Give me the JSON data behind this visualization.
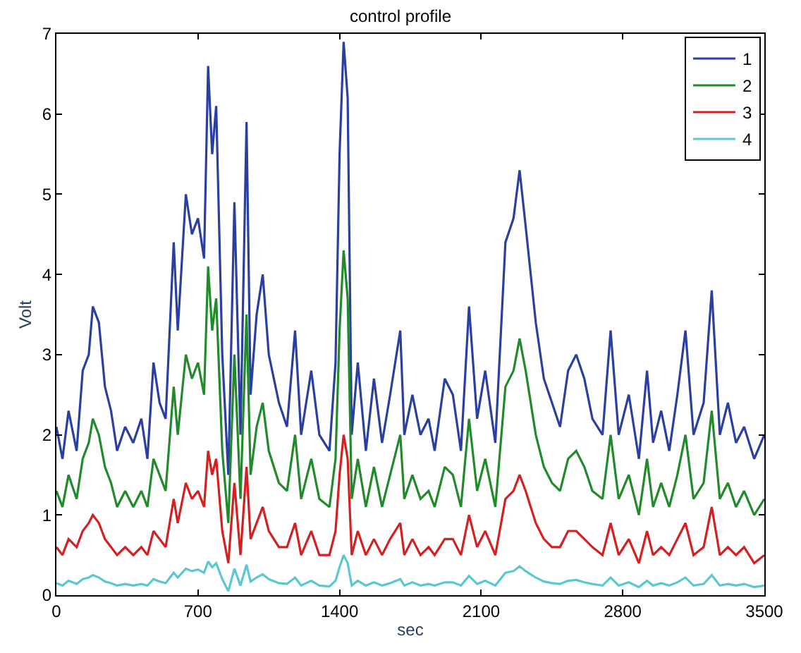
{
  "chart_data": {
    "type": "line",
    "title": "control profile",
    "xlabel": "sec",
    "ylabel": "Volt",
    "x": [
      0,
      30,
      60,
      100,
      130,
      160,
      180,
      210,
      240,
      270,
      300,
      340,
      380,
      420,
      450,
      480,
      510,
      540,
      580,
      600,
      640,
      670,
      700,
      730,
      750,
      770,
      790,
      820,
      850,
      880,
      910,
      940,
      960,
      990,
      1020,
      1050,
      1100,
      1140,
      1180,
      1210,
      1260,
      1300,
      1350,
      1380,
      1400,
      1420,
      1440,
      1460,
      1490,
      1530,
      1570,
      1610,
      1650,
      1700,
      1720,
      1760,
      1800,
      1840,
      1870,
      1920,
      1960,
      2000,
      2040,
      2080,
      2120,
      2170,
      2220,
      2260,
      2290,
      2320,
      2370,
      2410,
      2450,
      2490,
      2530,
      2570,
      2610,
      2650,
      2700,
      2740,
      2780,
      2830,
      2880,
      2920,
      2950,
      2990,
      3030,
      3070,
      3110,
      3150,
      3200,
      3240,
      3280,
      3320,
      3360,
      3400,
      3450,
      3500
    ],
    "series": [
      {
        "name": "1",
        "color": "#2b3fa0",
        "values": [
          2.1,
          1.7,
          2.3,
          1.8,
          2.8,
          3.0,
          3.6,
          3.4,
          2.6,
          2.3,
          1.8,
          2.1,
          1.9,
          2.2,
          1.7,
          2.9,
          2.4,
          2.2,
          4.4,
          3.3,
          5.0,
          4.5,
          4.7,
          4.2,
          6.6,
          5.5,
          6.1,
          3.0,
          1.5,
          4.9,
          2.0,
          5.9,
          2.5,
          3.5,
          4.0,
          3.0,
          2.4,
          2.1,
          3.3,
          2.0,
          2.8,
          2.0,
          1.8,
          2.9,
          5.5,
          6.9,
          6.2,
          2.0,
          2.9,
          1.8,
          2.7,
          1.9,
          2.5,
          3.3,
          2.0,
          2.5,
          2.0,
          2.2,
          1.8,
          2.7,
          2.5,
          1.8,
          3.6,
          2.2,
          2.8,
          1.9,
          4.4,
          4.7,
          5.3,
          4.6,
          3.4,
          2.7,
          2.4,
          2.1,
          2.8,
          3.0,
          2.7,
          2.2,
          2.0,
          3.3,
          2.0,
          2.5,
          1.7,
          2.8,
          1.9,
          2.3,
          1.8,
          2.5,
          3.3,
          2.0,
          2.4,
          3.8,
          2.0,
          2.4,
          1.9,
          2.1,
          1.7,
          2.0
        ]
      },
      {
        "name": "2",
        "color": "#218a2a",
        "values": [
          1.3,
          1.1,
          1.5,
          1.2,
          1.7,
          1.9,
          2.2,
          2.0,
          1.6,
          1.4,
          1.1,
          1.3,
          1.1,
          1.3,
          1.1,
          1.7,
          1.5,
          1.3,
          2.6,
          2.0,
          3.0,
          2.7,
          2.9,
          2.5,
          4.1,
          3.3,
          3.7,
          1.8,
          0.9,
          3.0,
          1.2,
          3.5,
          1.5,
          2.1,
          2.4,
          1.8,
          1.4,
          1.3,
          2.0,
          1.2,
          1.7,
          1.2,
          1.1,
          1.7,
          3.3,
          4.3,
          3.7,
          1.2,
          1.7,
          1.1,
          1.6,
          1.1,
          1.5,
          2.0,
          1.2,
          1.5,
          1.2,
          1.3,
          1.1,
          1.6,
          1.5,
          1.1,
          2.2,
          1.3,
          1.7,
          1.1,
          2.6,
          2.8,
          3.2,
          2.8,
          2.0,
          1.6,
          1.4,
          1.3,
          1.7,
          1.8,
          1.6,
          1.3,
          1.2,
          2.0,
          1.2,
          1.5,
          1.0,
          1.7,
          1.1,
          1.4,
          1.1,
          1.5,
          2.0,
          1.2,
          1.4,
          2.3,
          1.2,
          1.4,
          1.1,
          1.3,
          1.0,
          1.2
        ]
      },
      {
        "name": "3",
        "color": "#d42020",
        "values": [
          0.6,
          0.5,
          0.7,
          0.6,
          0.8,
          0.9,
          1.0,
          0.9,
          0.7,
          0.6,
          0.5,
          0.6,
          0.5,
          0.6,
          0.5,
          0.8,
          0.7,
          0.6,
          1.2,
          0.9,
          1.4,
          1.2,
          1.3,
          1.1,
          1.8,
          1.5,
          1.7,
          0.8,
          0.4,
          1.4,
          0.5,
          1.6,
          0.7,
          0.9,
          1.1,
          0.8,
          0.6,
          0.6,
          0.9,
          0.5,
          0.8,
          0.5,
          0.5,
          0.8,
          1.5,
          2.0,
          1.7,
          0.5,
          0.8,
          0.5,
          0.7,
          0.5,
          0.7,
          0.9,
          0.5,
          0.7,
          0.5,
          0.6,
          0.5,
          0.7,
          0.7,
          0.5,
          1.0,
          0.6,
          0.8,
          0.5,
          1.2,
          1.3,
          1.5,
          1.3,
          0.9,
          0.7,
          0.6,
          0.6,
          0.8,
          0.8,
          0.7,
          0.6,
          0.5,
          0.9,
          0.5,
          0.7,
          0.4,
          0.8,
          0.5,
          0.6,
          0.5,
          0.7,
          0.9,
          0.5,
          0.6,
          1.1,
          0.5,
          0.6,
          0.5,
          0.6,
          0.4,
          0.5
        ]
      },
      {
        "name": "4",
        "color": "#5bc8d0",
        "values": [
          0.15,
          0.12,
          0.18,
          0.14,
          0.2,
          0.22,
          0.25,
          0.22,
          0.17,
          0.15,
          0.12,
          0.14,
          0.12,
          0.14,
          0.12,
          0.2,
          0.17,
          0.15,
          0.28,
          0.22,
          0.33,
          0.3,
          0.32,
          0.28,
          0.42,
          0.35,
          0.4,
          0.2,
          0.05,
          0.33,
          0.12,
          0.38,
          0.17,
          0.22,
          0.26,
          0.2,
          0.15,
          0.14,
          0.22,
          0.12,
          0.18,
          0.12,
          0.11,
          0.18,
          0.35,
          0.5,
          0.4,
          0.12,
          0.18,
          0.12,
          0.16,
          0.12,
          0.15,
          0.2,
          0.12,
          0.16,
          0.12,
          0.14,
          0.12,
          0.16,
          0.16,
          0.12,
          0.24,
          0.14,
          0.18,
          0.12,
          0.28,
          0.3,
          0.36,
          0.3,
          0.22,
          0.17,
          0.15,
          0.14,
          0.18,
          0.19,
          0.16,
          0.14,
          0.12,
          0.22,
          0.12,
          0.16,
          0.1,
          0.18,
          0.12,
          0.15,
          0.12,
          0.16,
          0.22,
          0.12,
          0.14,
          0.25,
          0.12,
          0.14,
          0.12,
          0.14,
          0.1,
          0.12
        ]
      }
    ],
    "xlim": [
      0,
      3500
    ],
    "xticks": [
      0,
      700,
      1400,
      2100,
      2800,
      3500
    ],
    "ylim": [
      0,
      7
    ],
    "yticks": [
      0,
      1,
      2,
      3,
      4,
      5,
      6,
      7
    ],
    "legend": "top right",
    "marker": "none",
    "line_style": "solid"
  }
}
